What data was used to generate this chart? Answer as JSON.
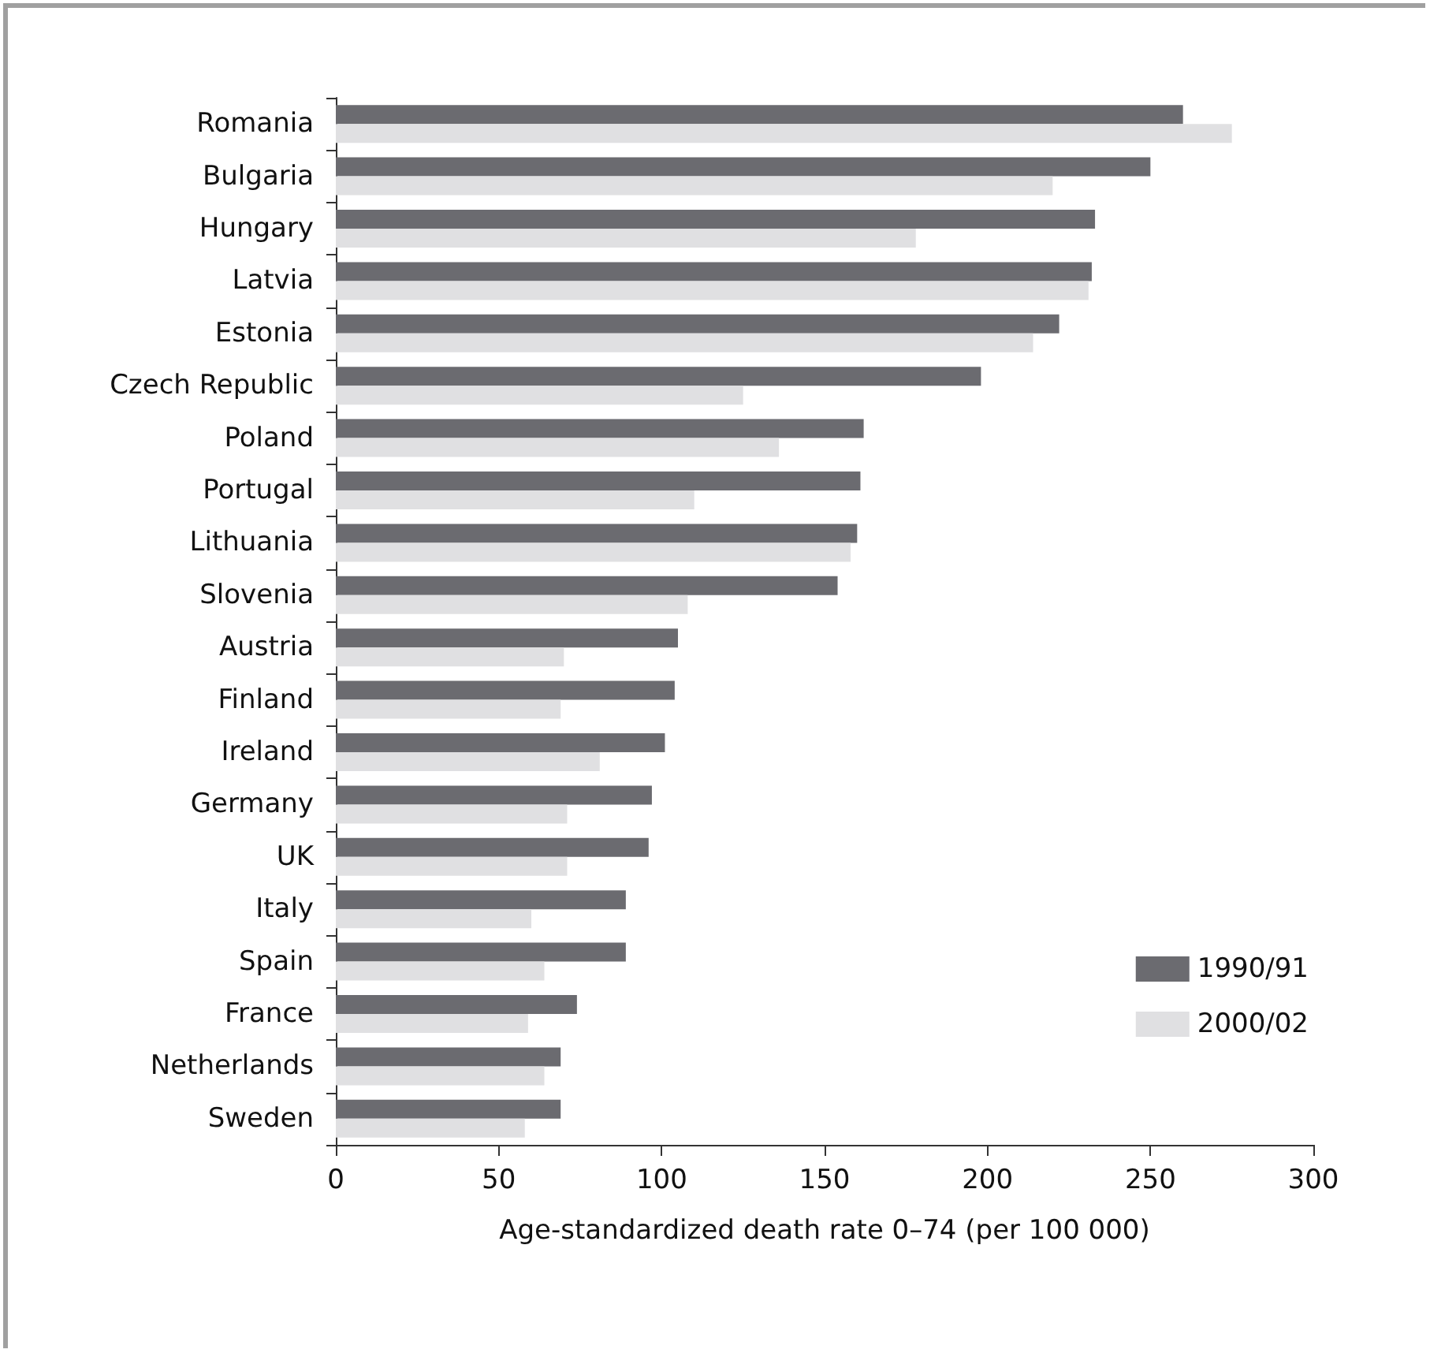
{
  "chart_data": {
    "type": "bar",
    "orientation": "horizontal",
    "xlabel": "Age-standardized death rate 0–74 (per 100 000)",
    "categories": [
      "Romania",
      "Bulgaria",
      "Hungary",
      "Latvia",
      "Estonia",
      "Czech Republic",
      "Poland",
      "Portugal",
      "Lithuania",
      "Slovenia",
      "Austria",
      "Finland",
      "Ireland",
      "Germany",
      "UK",
      "Italy",
      "Spain",
      "France",
      "Netherlands",
      "Sweden"
    ],
    "series": [
      {
        "name": "1990/91",
        "color": "#6b6b70",
        "values": [
          260,
          250,
          233,
          232,
          222,
          198,
          162,
          161,
          160,
          154,
          105,
          104,
          101,
          97,
          96,
          89,
          89,
          74,
          69,
          69
        ]
      },
      {
        "name": "2000/02",
        "color": "#e0e0e2",
        "values": [
          275,
          220,
          178,
          231,
          214,
          125,
          136,
          110,
          158,
          108,
          70,
          69,
          81,
          71,
          71,
          60,
          64,
          59,
          64,
          58
        ]
      }
    ],
    "xlim": [
      0,
      300
    ],
    "xticks": [
      0,
      50,
      100,
      150,
      200,
      250,
      300
    ],
    "grid": false,
    "legend": "bottom right"
  }
}
